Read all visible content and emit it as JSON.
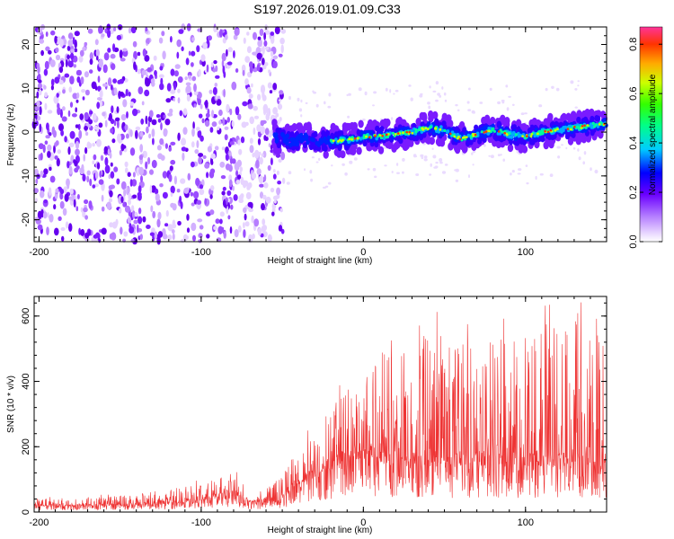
{
  "title": "S197.2026.019.01.09.C33",
  "chart_data": [
    {
      "type": "heatmap",
      "xlabel": "Height of straight line (km)",
      "ylabel": "Frequency (Hz)",
      "xlim": [
        -203,
        150
      ],
      "ylim": [
        -25,
        24
      ],
      "xticks": [
        -200,
        -100,
        0,
        100
      ],
      "yticks": [
        -20,
        -10,
        0,
        10,
        20
      ],
      "xtick_labels": [
        "-200",
        "-100",
        "0",
        "100"
      ],
      "ytick_labels": [
        "-20",
        "-10",
        "0",
        "10",
        "20"
      ],
      "colorbar": {
        "label": "Normalized spectral amplitude",
        "range": [
          0,
          0.87
        ],
        "ticks": [
          0.0,
          0.2,
          0.4,
          0.6,
          0.8
        ],
        "tick_labels": [
          "0.0",
          "0.2",
          "0.4",
          "0.6",
          "0.8"
        ]
      },
      "ridge": {
        "x": [
          -55,
          -45,
          -35,
          -25,
          -15,
          -5,
          0,
          10,
          20,
          30,
          40,
          50,
          60,
          70,
          80,
          90,
          100,
          110,
          120,
          130,
          140,
          150
        ],
        "freq": [
          -1,
          -2,
          -1.5,
          -2,
          -2,
          -1.5,
          -1,
          -1,
          -0.5,
          0,
          1,
          0.5,
          -1.5,
          -0.5,
          0.5,
          -0.5,
          -1,
          0,
          0.5,
          1,
          1.5,
          2
        ]
      },
      "noise_region": {
        "x_from": -203,
        "x_to": -55
      }
    },
    {
      "type": "line",
      "xlabel": "Height of straight line (km)",
      "ylabel": "SNR (10 * v/v)",
      "xlim": [
        -203,
        150
      ],
      "ylim": [
        0,
        660
      ],
      "xticks": [
        -200,
        -100,
        0,
        100
      ],
      "yticks": [
        0,
        200,
        400,
        600
      ],
      "xtick_labels": [
        "-200",
        "-100",
        "0",
        "100"
      ],
      "ytick_labels": [
        "0",
        "200",
        "400",
        "600"
      ],
      "color": "#ee3333",
      "envelope": {
        "x": [
          -203,
          -150,
          -120,
          -100,
          -90,
          -80,
          -70,
          -60,
          -50,
          -40,
          -30,
          -20,
          -10,
          0,
          10,
          20,
          40,
          60,
          80,
          100,
          120,
          140,
          150
        ],
        "baseline": [
          18,
          20,
          25,
          35,
          45,
          55,
          30,
          25,
          40,
          80,
          110,
          130,
          150,
          170,
          160,
          150,
          140,
          140,
          140,
          140,
          140,
          140,
          140
        ],
        "peak": [
          40,
          50,
          70,
          90,
          110,
          125,
          60,
          70,
          110,
          200,
          260,
          320,
          380,
          430,
          500,
          520,
          560,
          520,
          520,
          540,
          560,
          560,
          540
        ]
      }
    }
  ]
}
